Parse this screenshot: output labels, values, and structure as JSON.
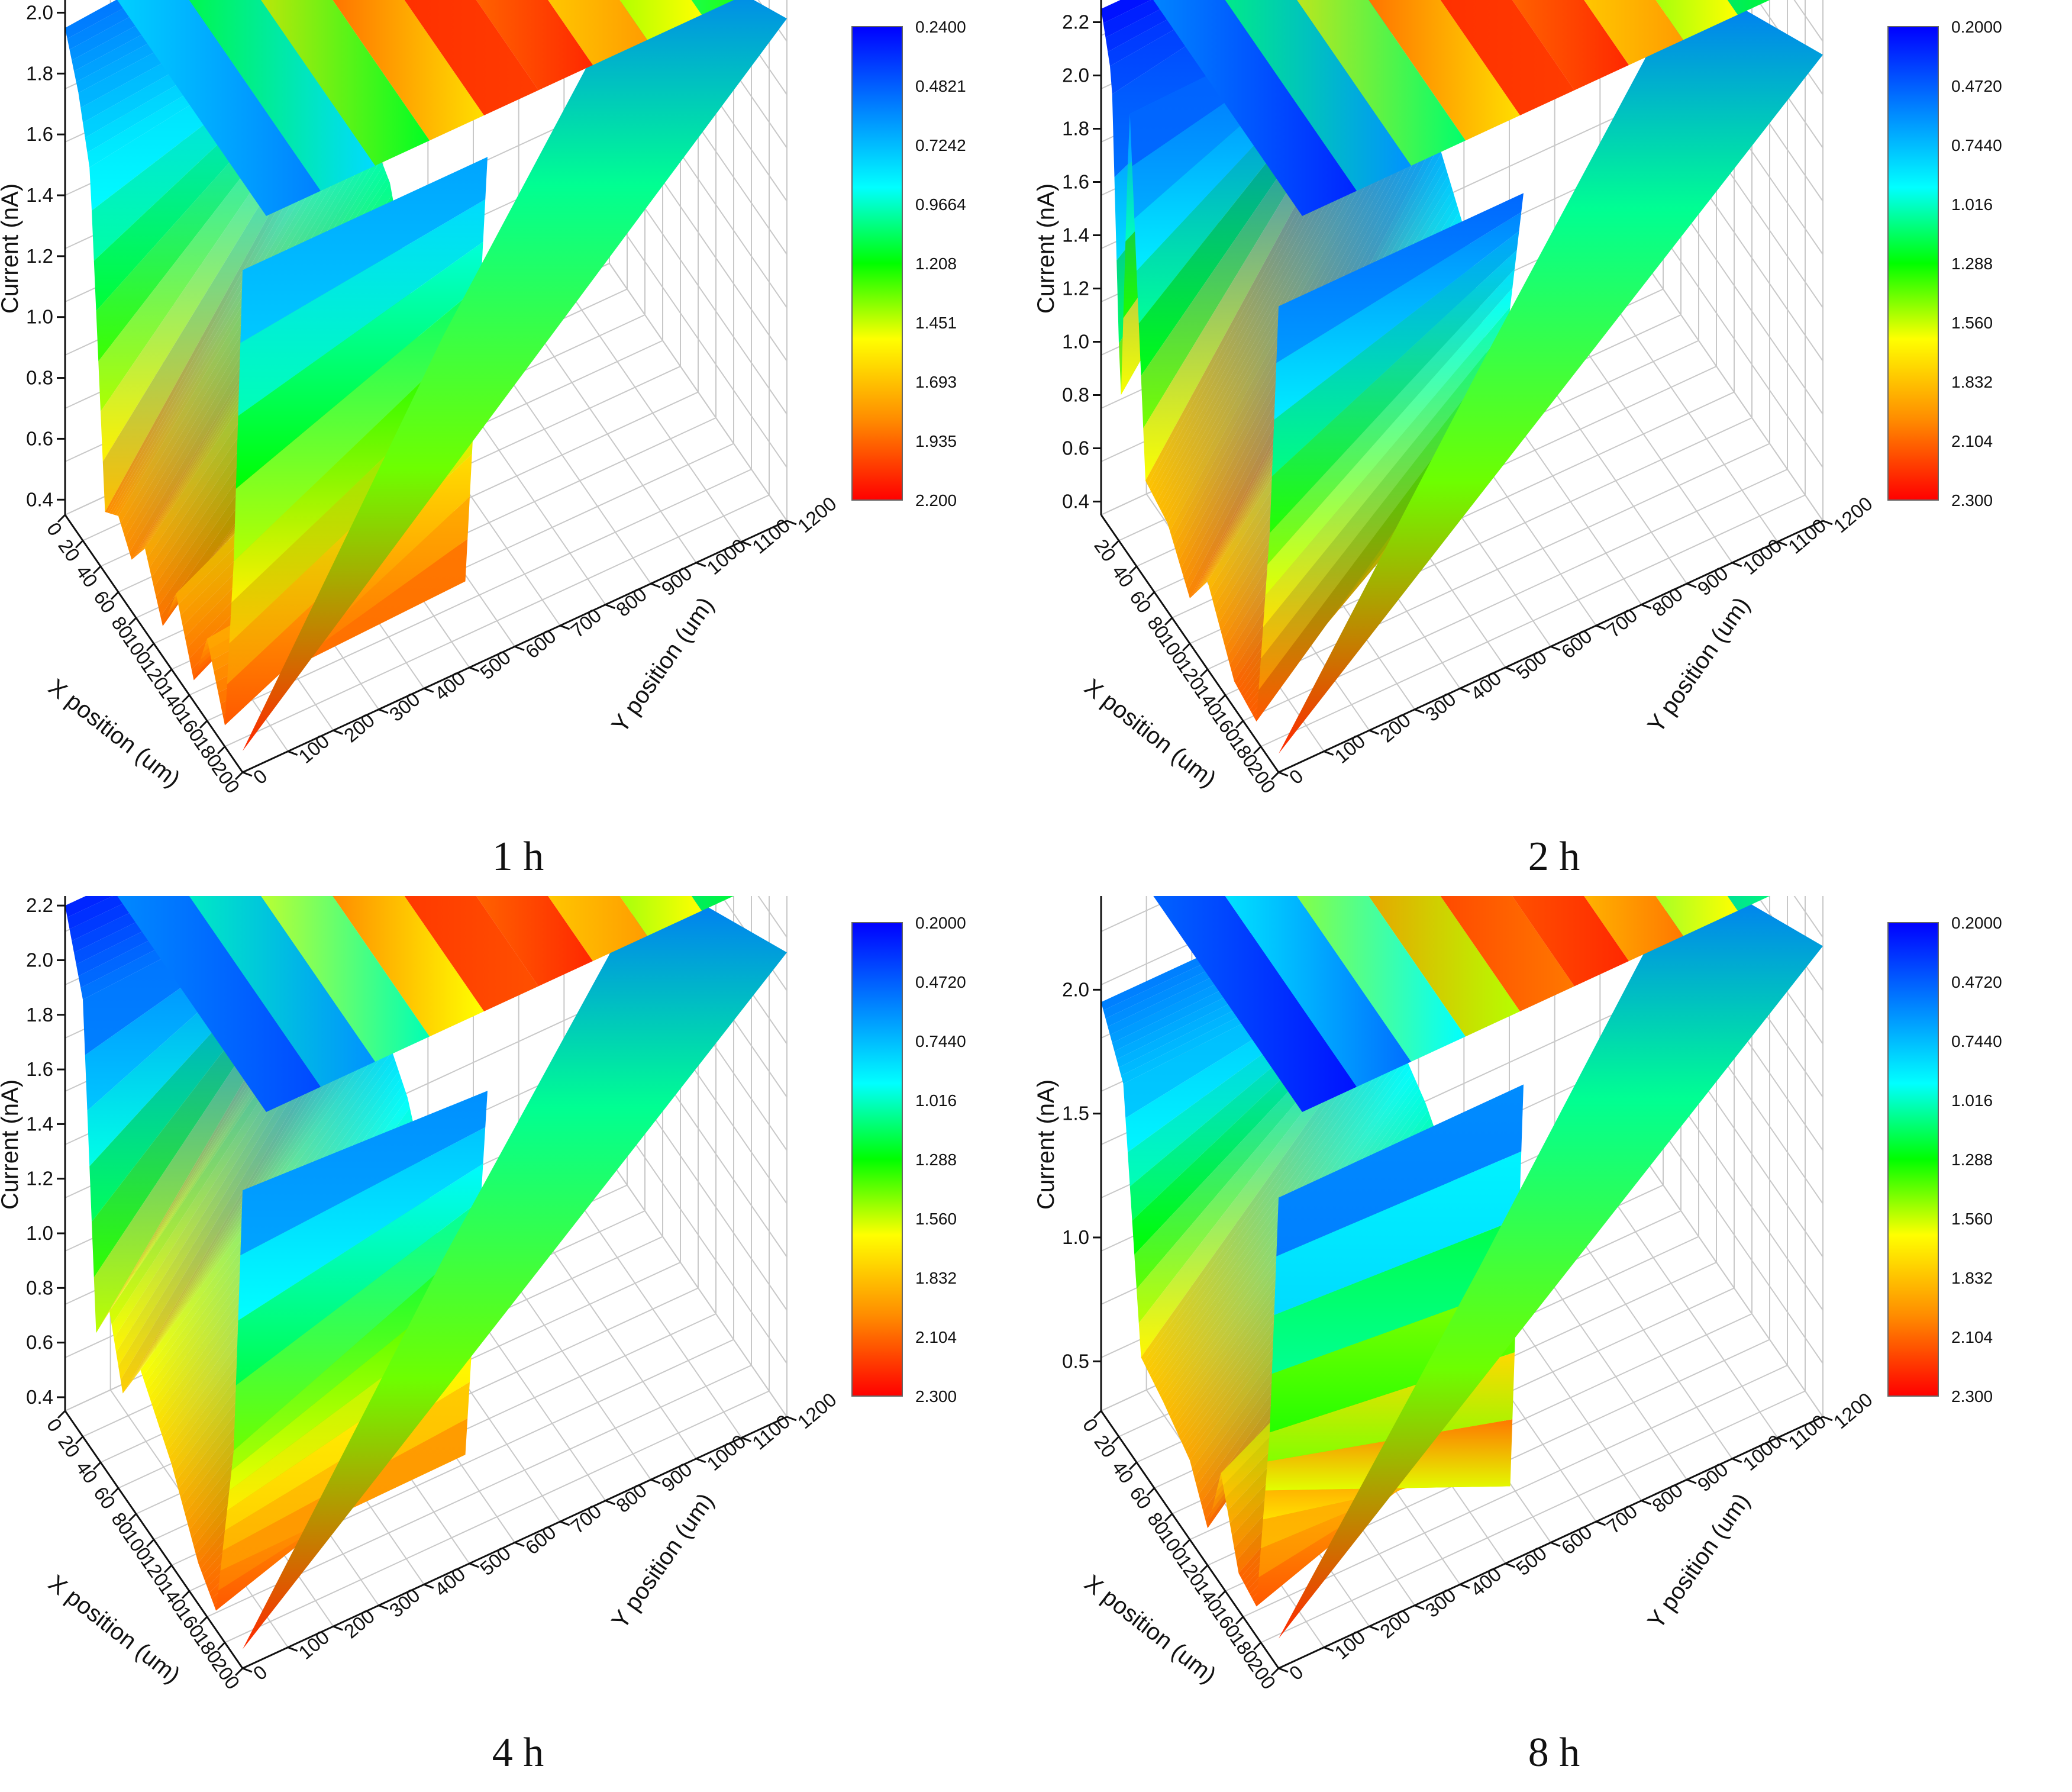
{
  "figure": {
    "panels": [
      {
        "caption": "1 h"
      },
      {
        "caption": "2 h"
      },
      {
        "caption": "4 h"
      },
      {
        "caption": "8 h"
      }
    ]
  },
  "colors": {
    "scale_low": "#ff0000",
    "scale_orange": "#ff8c00",
    "scale_yellow": "#ffff00",
    "scale_green": "#00ff00",
    "scale_cyan": "#00ffff",
    "scale_mid_blue": "#0080ff",
    "scale_high": "#0000ff",
    "grid": "#c8c8c8"
  },
  "chart_data": [
    {
      "type": "surface3d",
      "xlabel": "X position (um)",
      "ylabel": "Y position (um)",
      "zlabel": "Current (nA)",
      "x_ticks": [
        "0",
        "20",
        "40",
        "60",
        "80",
        "100",
        "120",
        "140",
        "160",
        "180",
        "200"
      ],
      "y_ticks": [
        "0",
        "100",
        "200",
        "300",
        "400",
        "500",
        "600",
        "700",
        "800",
        "900",
        "1000",
        "1100",
        "1200"
      ],
      "z_ticks": [
        "0.4",
        "0.6",
        "0.8",
        "1.0",
        "1.2",
        "1.4",
        "1.6",
        "1.8",
        "2.0"
      ],
      "zlim": [
        0.35,
        2.1
      ],
      "colorbar_ticks": [
        "0.2400",
        "0.4821",
        "0.7242",
        "0.9664",
        "1.208",
        "1.451",
        "1.693",
        "1.935",
        "2.200"
      ],
      "front_profile": [
        [
          0,
          1.95
        ],
        [
          15,
          1.8
        ],
        [
          28,
          1.6
        ],
        [
          45,
          0.55
        ],
        [
          60,
          0.6
        ],
        [
          75,
          0.52
        ],
        [
          90,
          0.62
        ],
        [
          110,
          0.45
        ],
        [
          125,
          0.62
        ],
        [
          145,
          0.42
        ],
        [
          160,
          0.62
        ],
        [
          180,
          0.42
        ],
        [
          190,
          1.0
        ],
        [
          200,
          2.0
        ]
      ],
      "ridge_profile": [
        [
          0,
          2.02
        ],
        [
          25,
          1.75
        ],
        [
          60,
          1.55
        ],
        [
          90,
          1.45
        ],
        [
          120,
          1.1
        ],
        [
          150,
          0.85
        ],
        [
          175,
          0.5
        ],
        [
          200,
          2.0
        ]
      ],
      "top_bands": [
        1.9,
        1.6,
        1.2,
        0.9,
        0.6,
        0.3,
        0.35,
        0.8,
        1.3,
        1.7,
        1.95
      ]
    },
    {
      "type": "surface3d",
      "xlabel": "X position (um)",
      "ylabel": "Y position (um)",
      "zlabel": "Current (nA)",
      "x_ticks": [
        "20",
        "40",
        "60",
        "80",
        "100",
        "120",
        "140",
        "160",
        "180",
        "200"
      ],
      "y_ticks": [
        "0",
        "100",
        "200",
        "300",
        "400",
        "500",
        "600",
        "700",
        "800",
        "900",
        "1000",
        "1100",
        "1200"
      ],
      "z_ticks": [
        "0.4",
        "0.6",
        "0.8",
        "1.0",
        "1.2",
        "1.4",
        "1.6",
        "1.8",
        "2.0",
        "2.2"
      ],
      "zlim": [
        0.35,
        2.35
      ],
      "colorbar_ticks": [
        "0.2000",
        "0.4720",
        "0.7440",
        "1.016",
        "1.288",
        "1.560",
        "1.832",
        "2.104",
        "2.300"
      ],
      "front_profile": [
        [
          0,
          2.25
        ],
        [
          12,
          2.05
        ],
        [
          22,
          0.85
        ],
        [
          32,
          2.05
        ],
        [
          50,
          0.72
        ],
        [
          75,
          0.68
        ],
        [
          100,
          0.52
        ],
        [
          120,
          0.68
        ],
        [
          150,
          0.45
        ],
        [
          175,
          0.42
        ],
        [
          190,
          1.2
        ],
        [
          200,
          2.1
        ]
      ],
      "ridge_profile": [
        [
          0,
          2.25
        ],
        [
          30,
          2.05
        ],
        [
          60,
          1.95
        ],
        [
          100,
          1.85
        ],
        [
          140,
          1.6
        ],
        [
          170,
          1.1
        ],
        [
          200,
          2.1
        ]
      ],
      "top_bands": [
        2.2,
        1.8,
        1.3,
        0.9,
        0.6,
        0.3,
        0.35,
        0.8,
        1.4,
        1.9,
        2.2
      ]
    },
    {
      "type": "surface3d",
      "xlabel": "X position (um)",
      "ylabel": "Y position (um)",
      "zlabel": "Current (nA)",
      "x_ticks": [
        "0",
        "20",
        "40",
        "60",
        "80",
        "100",
        "120",
        "140",
        "160",
        "180",
        "200"
      ],
      "y_ticks": [
        "0",
        "100",
        "200",
        "300",
        "400",
        "500",
        "600",
        "700",
        "800",
        "900",
        "1000",
        "1100",
        "1200"
      ],
      "z_ticks": [
        "0.4",
        "0.6",
        "0.8",
        "1.0",
        "1.2",
        "1.4",
        "1.6",
        "1.8",
        "2.0",
        "2.2"
      ],
      "zlim": [
        0.35,
        2.3
      ],
      "colorbar_ticks": [
        "0.2000",
        "0.4720",
        "0.7440",
        "1.016",
        "1.288",
        "1.560",
        "1.832",
        "2.104",
        "2.300"
      ],
      "front_profile": [
        [
          0,
          2.2
        ],
        [
          20,
          1.95
        ],
        [
          35,
          0.8
        ],
        [
          50,
          0.95
        ],
        [
          65,
          0.72
        ],
        [
          85,
          0.9
        ],
        [
          120,
          0.72
        ],
        [
          150,
          0.5
        ],
        [
          170,
          0.42
        ],
        [
          190,
          1.1
        ],
        [
          200,
          2.1
        ]
      ],
      "ridge_profile": [
        [
          0,
          2.2
        ],
        [
          25,
          1.95
        ],
        [
          70,
          1.8
        ],
        [
          110,
          1.6
        ],
        [
          150,
          1.2
        ],
        [
          175,
          0.6
        ],
        [
          200,
          2.05
        ]
      ],
      "top_bands": [
        2.1,
        1.8,
        1.3,
        0.9,
        0.6,
        0.3,
        0.4,
        0.9,
        1.5,
        1.9,
        2.1
      ]
    },
    {
      "type": "surface3d",
      "xlabel": "X position (um)",
      "ylabel": "Y position (um)",
      "zlabel": "Current (nA)",
      "x_ticks": [
        "0",
        "20",
        "40",
        "60",
        "80",
        "100",
        "120",
        "140",
        "160",
        "180",
        "200"
      ],
      "y_ticks": [
        "0",
        "100",
        "200",
        "300",
        "400",
        "500",
        "600",
        "700",
        "800",
        "900",
        "1000",
        "1100",
        "1200"
      ],
      "z_ticks": [
        "0.5",
        "1.0",
        "1.5",
        "2.0"
      ],
      "zlim": [
        0.3,
        2.45
      ],
      "colorbar_ticks": [
        "0.2000",
        "0.4720",
        "0.7440",
        "1.016",
        "1.288",
        "1.560",
        "1.832",
        "2.104",
        "2.300"
      ],
      "front_profile": [
        [
          0,
          1.95
        ],
        [
          25,
          1.75
        ],
        [
          45,
          0.75
        ],
        [
          70,
          0.7
        ],
        [
          100,
          0.62
        ],
        [
          120,
          0.45
        ],
        [
          135,
          0.75
        ],
        [
          155,
          0.45
        ],
        [
          175,
          0.42
        ],
        [
          190,
          1.2
        ],
        [
          200,
          2.2
        ]
      ],
      "ridge_profile": [
        [
          0,
          1.95
        ],
        [
          40,
          1.7
        ],
        [
          90,
          1.55
        ],
        [
          130,
          1.35
        ],
        [
          165,
          1.05
        ],
        [
          185,
          0.5
        ],
        [
          200,
          2.2
        ]
      ],
      "top_bands": [
        2.2,
        1.9,
        1.4,
        0.9,
        0.5,
        0.3,
        0.5,
        1.0,
        1.6,
        2.0,
        2.25
      ]
    }
  ]
}
